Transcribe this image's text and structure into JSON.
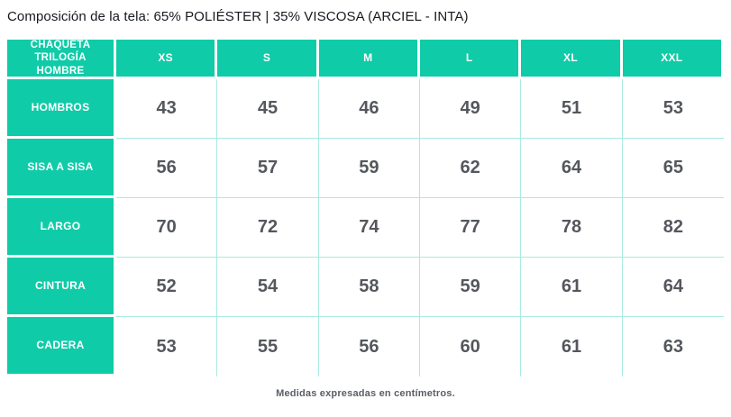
{
  "title": "Composición de la tela: 65% POLIÉSTER | 35% VISCOSA (ARCIEL - INTA)",
  "footer_note": "Medidas expresadas en centímetros.",
  "colors": {
    "teal": "#10cba8",
    "grid_line": "#a9eae1",
    "value_text": "#54575c",
    "header_text": "#ffffff"
  },
  "chart_data": {
    "type": "table",
    "title": "Composición de la tela: 65% POLIÉSTER | 35% VISCOSA (ARCIEL - INTA)",
    "corner_label": "CHAQUETA TRILOGÍA HOMBRE",
    "columns": [
      "XS",
      "S",
      "M",
      "L",
      "XL",
      "XXL"
    ],
    "rows": [
      {
        "label": "HOMBROS",
        "values": [
          43,
          45,
          46,
          49,
          51,
          53
        ]
      },
      {
        "label": "SISA A SISA",
        "values": [
          56,
          57,
          59,
          62,
          64,
          65
        ]
      },
      {
        "label": "LARGO",
        "values": [
          70,
          72,
          74,
          77,
          78,
          82
        ]
      },
      {
        "label": "CINTURA",
        "values": [
          52,
          54,
          58,
          59,
          61,
          64
        ]
      },
      {
        "label": "CADERA",
        "values": [
          53,
          55,
          56,
          60,
          61,
          63
        ]
      }
    ],
    "units_note": "Medidas expresadas en centímetros.",
    "layout_hints": {
      "header_position": "top-and-left",
      "grid": true
    }
  }
}
